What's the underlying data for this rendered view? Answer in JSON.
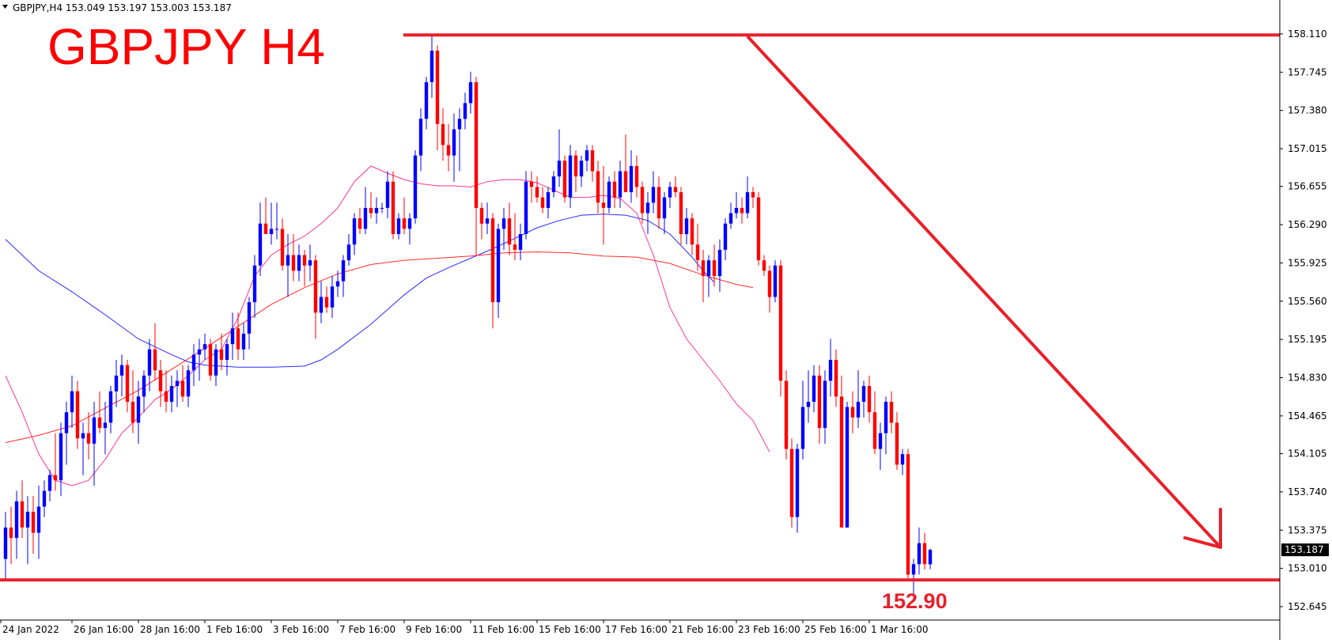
{
  "header": {
    "symbol_info": "GBPJPY,H4  153.049 153.197 153.003 153.187",
    "menu_arrow_icon": "triangle-down-icon"
  },
  "title": "GBPJPY H4",
  "support_label": "152.90",
  "current_price_label": "153.187",
  "colors": {
    "bull": "#0000ff",
    "bear": "#ff0000",
    "ma_fast": "#ff3399",
    "ma_mid": "#2a2aff",
    "ma_slow": "#ff2a2a",
    "annotation": "#e8202a",
    "price_badge": "#000000"
  },
  "chart_data": {
    "type": "candlestick",
    "symbol": "GBPJPY",
    "timeframe": "H4",
    "ylim": [
      152.645,
      158.2
    ],
    "y_ticks": [
      "158.110",
      "157.745",
      "157.380",
      "157.015",
      "156.655",
      "156.290",
      "155.925",
      "155.560",
      "155.195",
      "154.830",
      "154.465",
      "154.105",
      "153.740",
      "153.375",
      "153.010",
      "152.645"
    ],
    "x_ticks": [
      "24 Jan 2022",
      "26 Jan 16:00",
      "28 Jan 16:00",
      "1 Feb 16:00",
      "3 Feb 16:00",
      "7 Feb 16:00",
      "9 Feb 16:00",
      "11 Feb 16:00",
      "15 Feb 16:00",
      "17 Feb 16:00",
      "21 Feb 16:00",
      "23 Feb 16:00",
      "25 Feb 16:00",
      "1 Mar 16:00"
    ],
    "grid": false,
    "legend": "none",
    "last_ohlc": {
      "open": 153.049,
      "high": 153.197,
      "low": 153.003,
      "close": 153.187
    },
    "candles": [
      [
        153.1,
        153.55,
        152.9,
        153.4
      ],
      [
        153.4,
        153.6,
        153.05,
        153.3
      ],
      [
        153.3,
        153.75,
        153.1,
        153.65
      ],
      [
        153.65,
        153.85,
        153.3,
        153.4
      ],
      [
        153.4,
        153.7,
        153.05,
        153.55
      ],
      [
        153.55,
        153.7,
        153.15,
        153.35
      ],
      [
        153.35,
        153.8,
        153.1,
        153.6
      ],
      [
        153.6,
        153.85,
        153.5,
        153.75
      ],
      [
        153.75,
        153.95,
        153.65,
        153.9
      ],
      [
        153.9,
        154.3,
        153.75,
        153.85
      ],
      [
        153.85,
        154.4,
        153.7,
        154.3
      ],
      [
        154.3,
        154.6,
        154.0,
        154.5
      ],
      [
        154.5,
        154.85,
        154.35,
        154.7
      ],
      [
        154.7,
        154.8,
        154.15,
        154.25
      ],
      [
        154.25,
        154.4,
        153.9,
        154.3
      ],
      [
        154.3,
        154.5,
        154.05,
        154.2
      ],
      [
        154.2,
        154.6,
        153.8,
        154.45
      ],
      [
        154.45,
        154.7,
        154.3,
        154.35
      ],
      [
        154.35,
        154.6,
        154.1,
        154.4
      ],
      [
        154.4,
        154.75,
        154.3,
        154.7
      ],
      [
        154.7,
        155.0,
        154.55,
        154.85
      ],
      [
        154.85,
        155.05,
        154.65,
        154.95
      ],
      [
        154.95,
        155.0,
        154.5,
        154.6
      ],
      [
        154.6,
        154.9,
        154.3,
        154.4
      ],
      [
        154.4,
        154.8,
        154.2,
        154.65
      ],
      [
        154.65,
        154.9,
        154.5,
        154.85
      ],
      [
        154.85,
        155.2,
        154.7,
        155.1
      ],
      [
        155.1,
        155.35,
        154.8,
        154.9
      ],
      [
        154.9,
        155.0,
        154.55,
        154.7
      ],
      [
        154.7,
        154.9,
        154.5,
        154.6
      ],
      [
        154.6,
        154.85,
        154.5,
        154.75
      ],
      [
        154.75,
        154.9,
        154.55,
        154.8
      ],
      [
        154.8,
        154.95,
        154.6,
        154.65
      ],
      [
        154.65,
        154.95,
        154.55,
        154.9
      ],
      [
        154.9,
        155.15,
        154.75,
        155.05
      ],
      [
        155.05,
        155.2,
        154.8,
        155.1
      ],
      [
        155.1,
        155.25,
        155.0,
        155.15
      ],
      [
        155.15,
        155.2,
        154.8,
        154.85
      ],
      [
        154.85,
        155.15,
        154.75,
        155.1
      ],
      [
        155.1,
        155.25,
        154.9,
        155.0
      ],
      [
        155.0,
        155.2,
        154.85,
        155.15
      ],
      [
        155.15,
        155.45,
        155.0,
        155.3
      ],
      [
        155.3,
        155.45,
        155.0,
        155.1
      ],
      [
        155.1,
        155.35,
        155.0,
        155.25
      ],
      [
        155.25,
        155.6,
        155.1,
        155.55
      ],
      [
        155.55,
        156.0,
        155.4,
        155.9
      ],
      [
        155.9,
        156.5,
        155.8,
        156.3
      ],
      [
        156.3,
        156.55,
        156.2,
        156.2
      ],
      [
        156.2,
        156.5,
        156.1,
        156.25
      ],
      [
        156.25,
        156.5,
        156.15,
        156.25
      ],
      [
        156.25,
        156.35,
        155.85,
        155.9
      ],
      [
        155.9,
        156.2,
        155.6,
        156.0
      ],
      [
        156.0,
        156.2,
        155.75,
        155.85
      ],
      [
        155.85,
        156.1,
        155.75,
        156.0
      ],
      [
        156.0,
        156.05,
        155.7,
        155.9
      ],
      [
        155.9,
        156.1,
        155.75,
        155.95
      ],
      [
        155.95,
        156.0,
        155.2,
        155.45
      ],
      [
        155.45,
        155.75,
        155.35,
        155.6
      ],
      [
        155.6,
        155.7,
        155.45,
        155.5
      ],
      [
        155.5,
        155.8,
        155.4,
        155.7
      ],
      [
        155.7,
        155.85,
        155.6,
        155.75
      ],
      [
        155.75,
        156.0,
        155.6,
        155.95
      ],
      [
        155.95,
        156.2,
        155.9,
        156.1
      ],
      [
        156.1,
        156.4,
        156.0,
        156.35
      ],
      [
        156.35,
        156.45,
        156.2,
        156.25
      ],
      [
        156.25,
        156.65,
        156.2,
        156.45
      ],
      [
        156.45,
        156.6,
        156.35,
        156.4
      ],
      [
        156.4,
        156.55,
        156.3,
        156.45
      ],
      [
        156.45,
        156.5,
        156.4,
        156.45
      ],
      [
        156.45,
        156.8,
        156.35,
        156.7
      ],
      [
        156.7,
        156.8,
        156.15,
        156.2
      ],
      [
        156.2,
        156.4,
        156.15,
        156.35
      ],
      [
        156.35,
        156.55,
        156.2,
        156.25
      ],
      [
        156.25,
        156.4,
        156.1,
        156.35
      ],
      [
        156.35,
        157.0,
        156.3,
        156.95
      ],
      [
        156.95,
        157.4,
        156.8,
        157.3
      ],
      [
        157.3,
        157.7,
        157.2,
        157.65
      ],
      [
        157.65,
        158.1,
        157.5,
        157.95
      ],
      [
        157.95,
        158.0,
        157.0,
        157.25
      ],
      [
        157.25,
        157.4,
        156.9,
        157.05
      ],
      [
        157.05,
        157.25,
        156.8,
        156.95
      ],
      [
        156.95,
        157.35,
        156.7,
        157.2
      ],
      [
        157.2,
        157.4,
        156.8,
        157.3
      ],
      [
        157.3,
        157.55,
        157.2,
        157.45
      ],
      [
        157.45,
        157.75,
        157.35,
        157.65
      ],
      [
        157.65,
        157.7,
        156.0,
        156.45
      ],
      [
        156.45,
        156.5,
        156.15,
        156.3
      ],
      [
        156.3,
        156.5,
        156.2,
        156.35
      ],
      [
        156.35,
        156.4,
        155.3,
        155.55
      ],
      [
        155.55,
        156.3,
        155.4,
        156.25
      ],
      [
        156.25,
        156.45,
        156.05,
        156.35
      ],
      [
        156.35,
        156.5,
        156.0,
        156.1
      ],
      [
        156.1,
        156.4,
        155.95,
        156.05
      ],
      [
        156.05,
        156.3,
        155.95,
        156.2
      ],
      [
        156.2,
        156.8,
        156.15,
        156.7
      ],
      [
        156.7,
        156.8,
        156.5,
        156.65
      ],
      [
        156.65,
        156.75,
        156.5,
        156.55
      ],
      [
        156.55,
        156.65,
        156.4,
        156.45
      ],
      [
        156.45,
        156.65,
        156.35,
        156.6
      ],
      [
        156.6,
        156.8,
        156.55,
        156.75
      ],
      [
        156.75,
        157.2,
        156.65,
        156.9
      ],
      [
        156.9,
        156.95,
        156.5,
        156.55
      ],
      [
        156.55,
        157.05,
        156.45,
        156.95
      ],
      [
        156.95,
        157.0,
        156.6,
        156.75
      ],
      [
        156.75,
        156.95,
        156.65,
        156.9
      ],
      [
        156.9,
        157.05,
        156.8,
        157.0
      ],
      [
        157.0,
        157.05,
        156.7,
        156.8
      ],
      [
        156.8,
        156.9,
        156.4,
        156.5
      ],
      [
        156.5,
        156.85,
        156.1,
        156.45
      ],
      [
        156.45,
        156.75,
        156.4,
        156.7
      ],
      [
        156.7,
        156.8,
        156.45,
        156.55
      ],
      [
        156.55,
        156.9,
        156.45,
        156.8
      ],
      [
        156.8,
        157.15,
        156.6,
        156.6
      ],
      [
        156.6,
        157.0,
        156.5,
        156.85
      ],
      [
        156.85,
        156.95,
        156.55,
        156.65
      ],
      [
        156.65,
        156.7,
        156.3,
        156.4
      ],
      [
        156.4,
        156.6,
        156.2,
        156.5
      ],
      [
        156.5,
        156.8,
        156.4,
        156.65
      ],
      [
        156.65,
        156.75,
        156.25,
        156.35
      ],
      [
        156.35,
        156.6,
        156.2,
        156.55
      ],
      [
        156.55,
        156.7,
        156.45,
        156.65
      ],
      [
        156.65,
        156.75,
        156.55,
        156.6
      ],
      [
        156.6,
        156.65,
        156.1,
        156.2
      ],
      [
        156.2,
        156.45,
        156.1,
        156.35
      ],
      [
        156.35,
        156.4,
        156.0,
        156.1
      ],
      [
        156.1,
        156.3,
        155.85,
        155.95
      ],
      [
        155.95,
        156.05,
        155.55,
        155.8
      ],
      [
        155.8,
        156.0,
        155.6,
        155.95
      ],
      [
        155.95,
        156.1,
        155.7,
        155.8
      ],
      [
        155.8,
        156.15,
        155.65,
        156.05
      ],
      [
        156.05,
        156.35,
        155.95,
        156.3
      ],
      [
        156.3,
        156.5,
        156.25,
        156.4
      ],
      [
        156.4,
        156.6,
        156.35,
        156.45
      ],
      [
        156.45,
        156.55,
        156.3,
        156.4
      ],
      [
        156.4,
        156.75,
        156.35,
        156.6
      ],
      [
        156.6,
        156.65,
        156.45,
        156.55
      ],
      [
        156.55,
        156.6,
        155.9,
        155.95
      ],
      [
        155.95,
        156.0,
        155.8,
        155.85
      ],
      [
        155.85,
        155.9,
        155.45,
        155.6
      ],
      [
        155.6,
        155.95,
        155.55,
        155.9
      ],
      [
        155.9,
        155.95,
        154.65,
        154.8
      ],
      [
        154.8,
        154.9,
        154.05,
        154.15
      ],
      [
        154.15,
        154.25,
        153.4,
        153.5
      ],
      [
        153.5,
        154.2,
        153.35,
        154.15
      ],
      [
        154.15,
        154.8,
        154.05,
        154.55
      ],
      [
        154.55,
        154.9,
        154.4,
        154.6
      ],
      [
        154.6,
        154.95,
        154.5,
        154.85
      ],
      [
        154.85,
        154.95,
        154.2,
        154.35
      ],
      [
        154.35,
        154.9,
        154.2,
        154.8
      ],
      [
        154.8,
        155.2,
        154.65,
        155.0
      ],
      [
        155.0,
        155.1,
        154.55,
        154.65
      ],
      [
        154.65,
        154.85,
        153.4,
        153.4
      ],
      [
        153.4,
        154.6,
        153.4,
        154.55
      ],
      [
        154.55,
        154.7,
        154.3,
        154.45
      ],
      [
        154.45,
        154.9,
        154.35,
        154.6
      ],
      [
        154.6,
        154.8,
        154.45,
        154.75
      ],
      [
        154.75,
        154.85,
        154.4,
        154.5
      ],
      [
        154.5,
        154.7,
        154.1,
        154.15
      ],
      [
        154.15,
        154.4,
        153.95,
        154.3
      ],
      [
        154.3,
        154.65,
        154.1,
        154.6
      ],
      [
        154.6,
        154.7,
        154.3,
        154.4
      ],
      [
        154.4,
        154.5,
        153.95,
        154.0
      ],
      [
        154.0,
        154.15,
        153.9,
        154.1
      ],
      [
        154.1,
        154.15,
        152.9,
        152.95
      ],
      [
        152.95,
        153.1,
        152.7,
        153.05
      ],
      [
        153.05,
        153.4,
        152.95,
        153.25
      ],
      [
        153.25,
        153.35,
        153.0,
        153.05
      ],
      [
        153.049,
        153.197,
        153.003,
        153.187
      ]
    ],
    "ma_fast": [
      [
        0,
        154.85
      ],
      [
        3,
        154.5
      ],
      [
        6,
        154.1
      ],
      [
        9,
        153.85
      ],
      [
        12,
        153.8
      ],
      [
        15,
        153.85
      ],
      [
        18,
        154.05
      ],
      [
        21,
        154.3
      ],
      [
        24,
        154.45
      ],
      [
        27,
        154.62
      ],
      [
        30,
        154.72
      ],
      [
        33,
        154.85
      ],
      [
        36,
        155.0
      ],
      [
        39,
        155.1
      ],
      [
        42,
        155.4
      ],
      [
        45,
        155.8
      ],
      [
        48,
        156.0
      ],
      [
        51,
        156.1
      ],
      [
        54,
        156.18
      ],
      [
        57,
        156.3
      ],
      [
        60,
        156.45
      ],
      [
        63,
        156.7
      ],
      [
        66,
        156.85
      ],
      [
        69,
        156.78
      ],
      [
        72,
        156.72
      ],
      [
        75,
        156.68
      ],
      [
        78,
        156.66
      ],
      [
        81,
        156.66
      ],
      [
        84,
        156.65
      ],
      [
        87,
        156.7
      ],
      [
        90,
        156.72
      ],
      [
        93,
        156.72
      ],
      [
        96,
        156.69
      ],
      [
        99,
        156.62
      ],
      [
        102,
        156.55
      ],
      [
        105,
        156.55
      ],
      [
        108,
        156.57
      ],
      [
        111,
        156.54
      ],
      [
        114,
        156.4
      ],
      [
        117,
        156.0
      ],
      [
        120,
        155.5
      ],
      [
        123,
        155.2
      ],
      [
        126,
        155.0
      ],
      [
        129,
        154.8
      ],
      [
        132,
        154.58
      ],
      [
        135,
        154.42
      ],
      [
        138,
        154.12
      ]
    ],
    "ma_mid": [
      [
        0,
        156.15
      ],
      [
        6,
        155.85
      ],
      [
        12,
        155.65
      ],
      [
        18,
        155.43
      ],
      [
        24,
        155.2
      ],
      [
        30,
        155.05
      ],
      [
        33,
        154.98
      ],
      [
        36,
        154.95
      ],
      [
        42,
        154.93
      ],
      [
        48,
        154.93
      ],
      [
        54,
        154.94
      ],
      [
        57,
        155.0
      ],
      [
        60,
        155.1
      ],
      [
        66,
        155.34
      ],
      [
        72,
        155.62
      ],
      [
        76,
        155.78
      ],
      [
        80,
        155.88
      ],
      [
        84,
        155.97
      ],
      [
        88,
        156.06
      ],
      [
        92,
        156.16
      ],
      [
        96,
        156.26
      ],
      [
        100,
        156.33
      ],
      [
        104,
        156.38
      ],
      [
        108,
        156.39
      ],
      [
        112,
        156.38
      ],
      [
        116,
        156.33
      ],
      [
        120,
        156.2
      ],
      [
        124,
        155.98
      ],
      [
        126,
        155.85
      ],
      [
        128,
        155.74
      ]
    ],
    "ma_slow": [
      [
        0,
        154.21
      ],
      [
        6,
        154.28
      ],
      [
        12,
        154.37
      ],
      [
        18,
        154.54
      ],
      [
        24,
        154.71
      ],
      [
        30,
        154.91
      ],
      [
        36,
        155.11
      ],
      [
        42,
        155.32
      ],
      [
        48,
        155.53
      ],
      [
        54,
        155.69
      ],
      [
        60,
        155.82
      ],
      [
        66,
        155.91
      ],
      [
        72,
        155.95
      ],
      [
        78,
        155.97
      ],
      [
        84,
        155.99
      ],
      [
        90,
        156.02
      ],
      [
        96,
        156.03
      ],
      [
        102,
        156.02
      ],
      [
        108,
        155.99
      ],
      [
        114,
        155.98
      ],
      [
        120,
        155.92
      ],
      [
        126,
        155.81
      ],
      [
        132,
        155.72
      ],
      [
        135,
        155.69
      ]
    ],
    "annotations": {
      "resistance": 158.1,
      "support": 152.9,
      "trend_arrow": [
        [
          946,
          47
        ],
        [
          1543,
          692
        ]
      ]
    }
  }
}
